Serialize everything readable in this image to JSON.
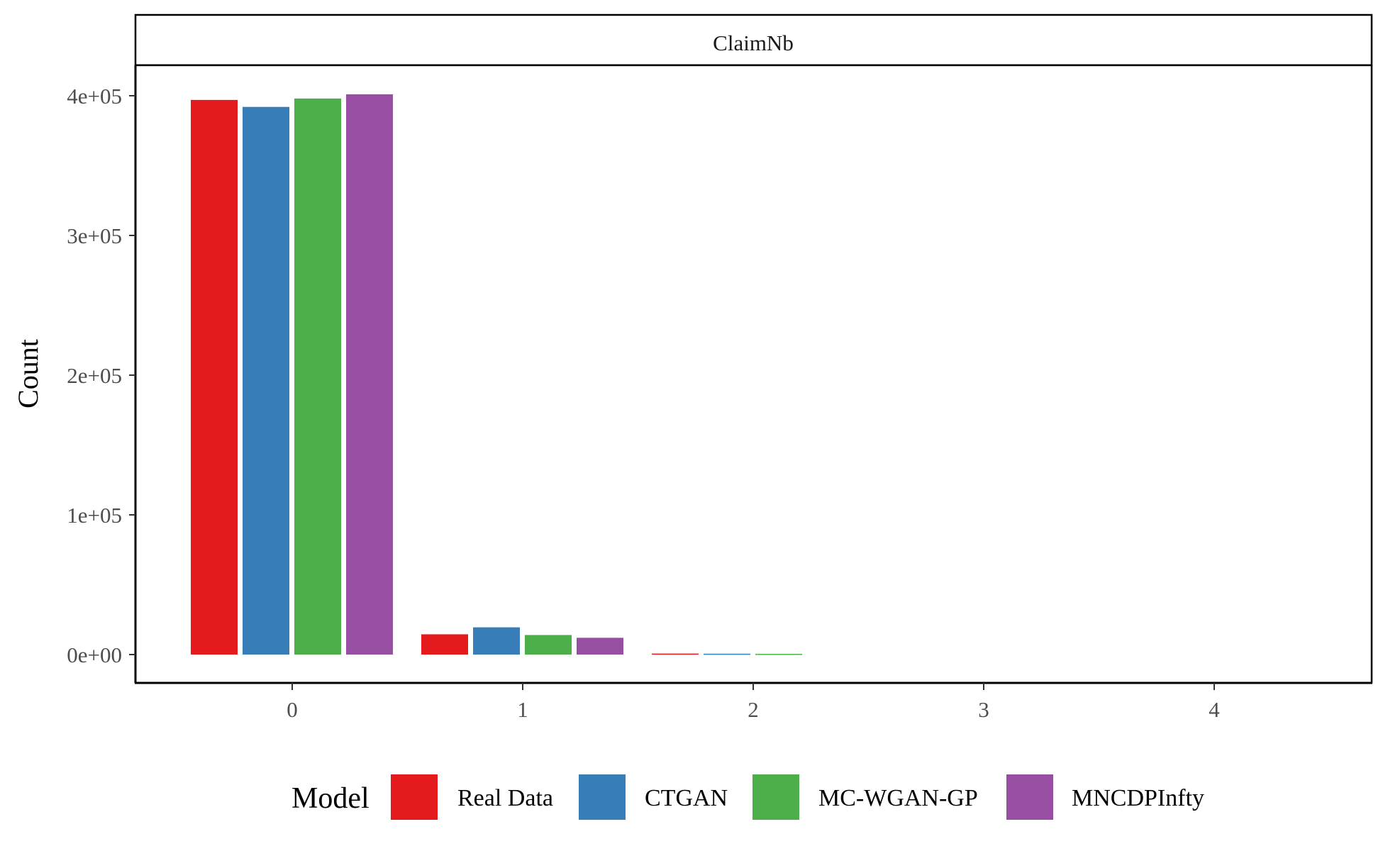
{
  "chart_data": {
    "type": "bar",
    "facet_label": "ClaimNb",
    "ylabel": "Count",
    "xlabel": "",
    "categories": [
      "0",
      "1",
      "2",
      "3",
      "4"
    ],
    "y_tick_labels": [
      "0e+00",
      "1e+05",
      "2e+05",
      "3e+05",
      "4e+05"
    ],
    "y_ticks": [
      0,
      100000,
      200000,
      300000,
      400000
    ],
    "ylim": [
      0,
      420000
    ],
    "grid": false,
    "legend": {
      "title": "Model",
      "position": "bottom"
    },
    "series": [
      {
        "name": "Real Data",
        "color": "#E41A1C",
        "values": [
          397000,
          14500,
          700,
          0,
          0
        ]
      },
      {
        "name": "CTGAN",
        "color": "#377EB8",
        "values": [
          392000,
          19500,
          600,
          0,
          0
        ]
      },
      {
        "name": "MC-WGAN-GP",
        "color": "#4DAF4A",
        "values": [
          398000,
          14000,
          500,
          0,
          0
        ]
      },
      {
        "name": "MNCDPInfty",
        "color": "#984EA3",
        "values": [
          401000,
          12000,
          0,
          0,
          0
        ]
      }
    ]
  }
}
